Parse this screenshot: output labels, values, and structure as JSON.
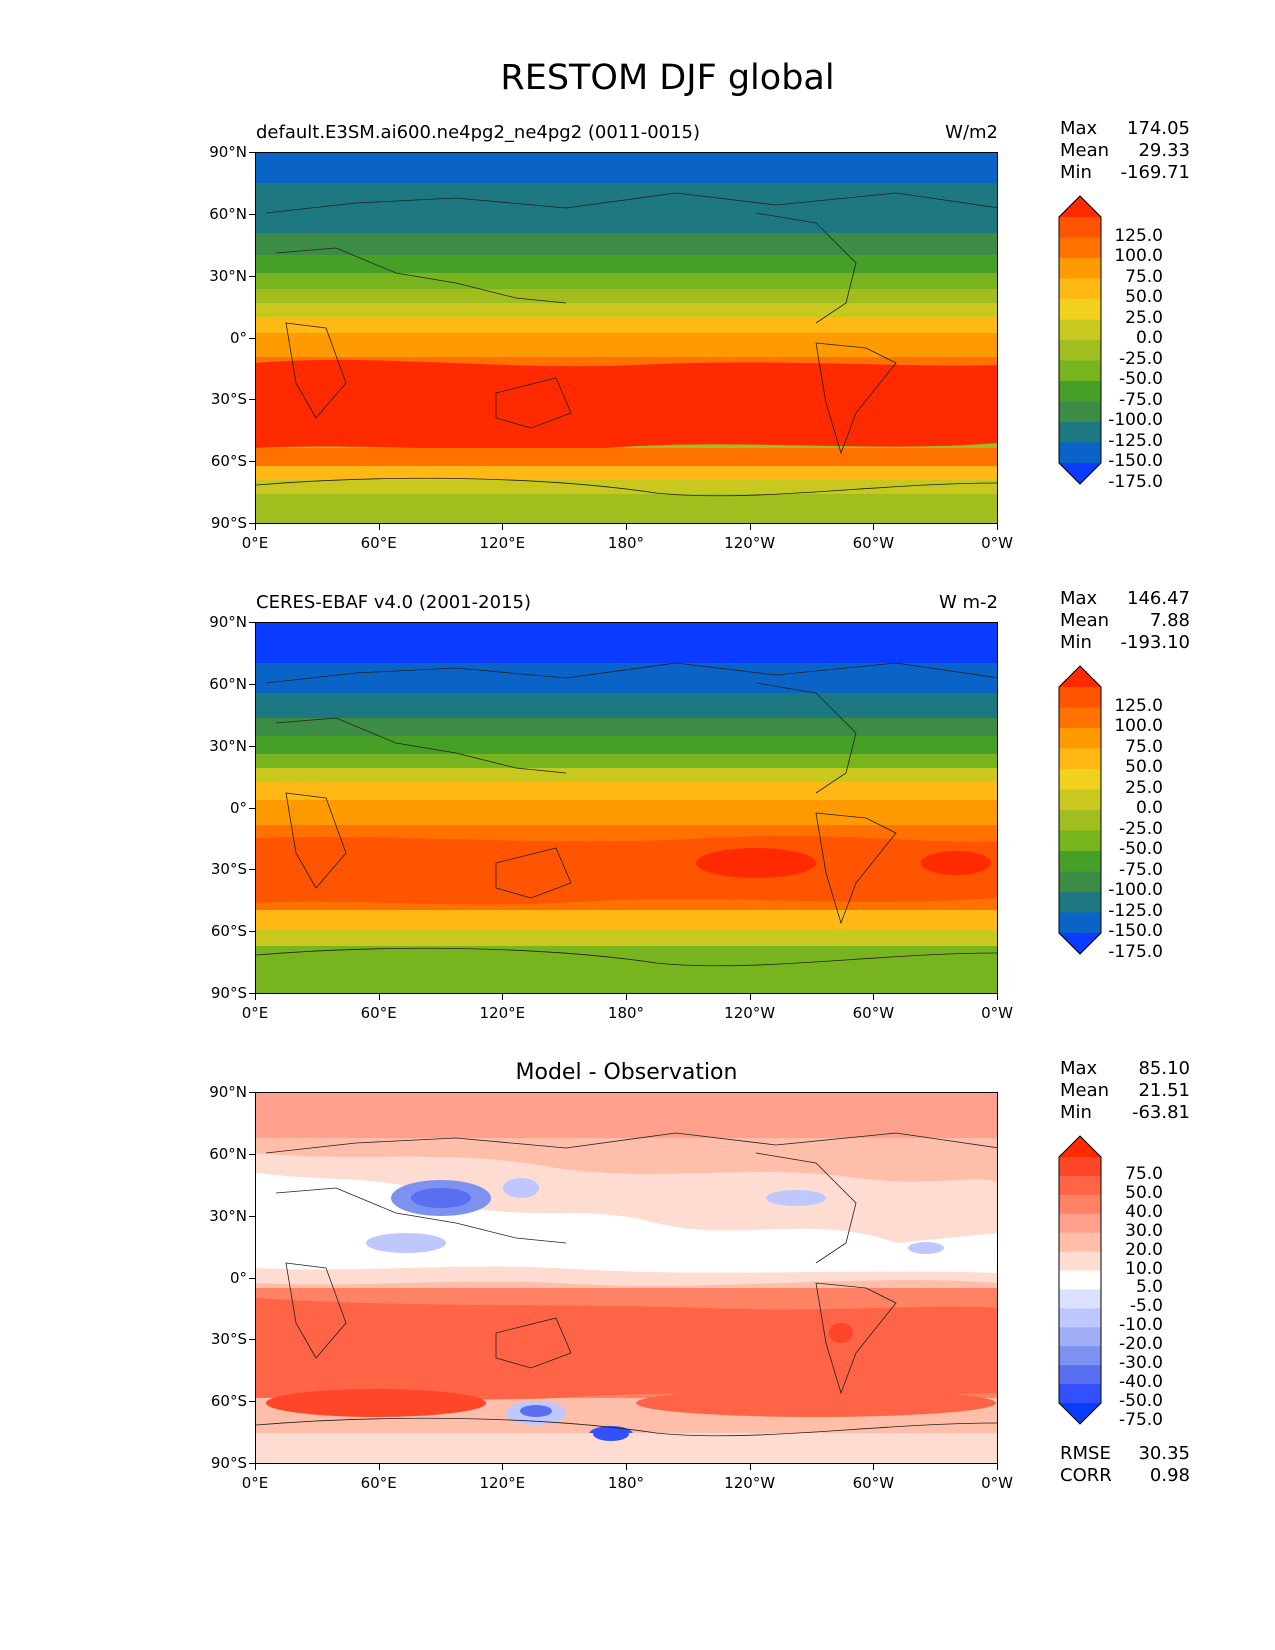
{
  "figure": {
    "title": "RESTOM DJF global"
  },
  "panels": [
    {
      "id": "model",
      "left_title": "default.E3SM.ai600.ne4pg2_ne4pg2 (0011-0015)",
      "center_title": "",
      "units": "W/m2",
      "stats": [
        {
          "label": "Max",
          "value": "174.05"
        },
        {
          "label": "Mean",
          "value": "29.33"
        },
        {
          "label": "Min",
          "value": "-169.71"
        }
      ],
      "extra_stats": [],
      "colorbar_labels": [
        "125.0",
        "100.0",
        "75.0",
        "50.0",
        "25.0",
        "0.0",
        "-25.0",
        "-50.0",
        "-75.0",
        "-100.0",
        "-125.0",
        "-150.0",
        "-175.0"
      ],
      "colorbar_colors": [
        "#ff2a00",
        "#ff5500",
        "#ff7200",
        "#ff9a00",
        "#ffb814",
        "#f0d21e",
        "#c8c81e",
        "#a0be1e",
        "#78b41e",
        "#46a028",
        "#3c8c46",
        "#1e7882",
        "#0a64c8",
        "#0a3cff"
      ]
    },
    {
      "id": "obs",
      "left_title": "CERES-EBAF v4.0 (2001-2015)",
      "center_title": "",
      "units": "W m-2",
      "stats": [
        {
          "label": "Max",
          "value": "146.47"
        },
        {
          "label": "Mean",
          "value": "7.88"
        },
        {
          "label": "Min",
          "value": "-193.10"
        }
      ],
      "extra_stats": [],
      "colorbar_labels": [
        "125.0",
        "100.0",
        "75.0",
        "50.0",
        "25.0",
        "0.0",
        "-25.0",
        "-50.0",
        "-75.0",
        "-100.0",
        "-125.0",
        "-150.0",
        "-175.0"
      ],
      "colorbar_colors": [
        "#ff2a00",
        "#ff5500",
        "#ff7200",
        "#ff9a00",
        "#ffb814",
        "#f0d21e",
        "#c8c81e",
        "#a0be1e",
        "#78b41e",
        "#46a028",
        "#3c8c46",
        "#1e7882",
        "#0a64c8",
        "#0a3cff"
      ]
    },
    {
      "id": "diff",
      "left_title": "",
      "center_title": "Model - Observation",
      "units": "",
      "stats": [
        {
          "label": "Max",
          "value": "85.10"
        },
        {
          "label": "Mean",
          "value": "21.51"
        },
        {
          "label": "Min",
          "value": "-63.81"
        }
      ],
      "extra_stats": [
        {
          "label": "RMSE",
          "value": "30.35"
        },
        {
          "label": "CORR",
          "value": "0.98"
        }
      ],
      "colorbar_labels": [
        "75.0",
        "50.0",
        "40.0",
        "30.0",
        "20.0",
        "10.0",
        "5.0",
        "-5.0",
        "-10.0",
        "-20.0",
        "-30.0",
        "-40.0",
        "-50.0",
        "-75.0"
      ],
      "colorbar_colors": [
        "#ff2a00",
        "#ff4628",
        "#ff6446",
        "#ff8264",
        "#ffa08c",
        "#ffbeaa",
        "#ffdcd2",
        "#ffffff",
        "#dce1ff",
        "#bec8ff",
        "#a0aff5",
        "#7d91f0",
        "#5a6ef0",
        "#3250ff",
        "#0a3cff"
      ]
    }
  ],
  "axes": {
    "yticks": [
      "90°N",
      "60°N",
      "30°N",
      "0°",
      "30°S",
      "60°S",
      "90°S"
    ],
    "xticks": [
      "0°E",
      "60°E",
      "120°E",
      "180°",
      "120°W",
      "60°W",
      "0°W"
    ]
  }
}
